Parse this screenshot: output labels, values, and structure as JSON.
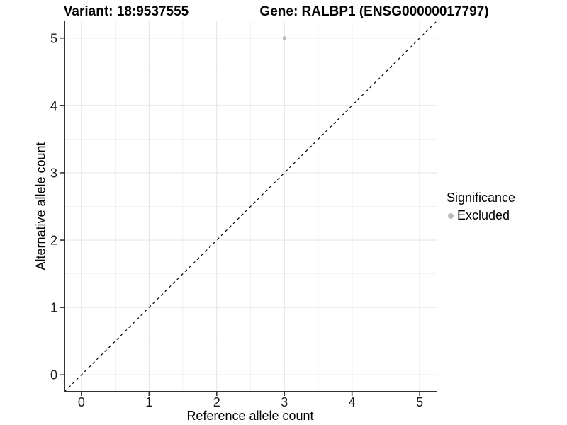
{
  "titles": {
    "variant": "Variant: 18:9537555",
    "gene": "Gene: RALBP1 (ENSG00000017797)"
  },
  "chart_data": {
    "type": "scatter",
    "title": "Variant: 18:9537555   Gene: RALBP1 (ENSG00000017797)",
    "xlabel": "Reference allele count",
    "ylabel": "Alternative allele count",
    "xlim": [
      -0.25,
      5.25
    ],
    "ylim": [
      -0.25,
      5.25
    ],
    "x_ticks": [
      0,
      1,
      2,
      3,
      4,
      5
    ],
    "y_ticks": [
      0,
      1,
      2,
      3,
      4,
      5
    ],
    "minor_ticks": [
      0.5,
      1.5,
      2.5,
      3.5,
      4.5
    ],
    "grid": true,
    "reference_line": {
      "type": "identity",
      "style": "dashed"
    },
    "series": [
      {
        "name": "Excluded",
        "points": [
          {
            "x": 3,
            "y": 5
          }
        ]
      }
    ],
    "legend": {
      "title": "Significance",
      "position": "right",
      "items": [
        {
          "label": "Excluded",
          "color": "#bcbcbc"
        }
      ]
    }
  },
  "colors": {
    "point": "#bcbcbc",
    "grid_major": "#e6e6e6",
    "grid_minor": "#f2f2f2",
    "axis": "#333333",
    "tick": "#333333",
    "reference_line": "#000000",
    "background": "#ffffff"
  }
}
